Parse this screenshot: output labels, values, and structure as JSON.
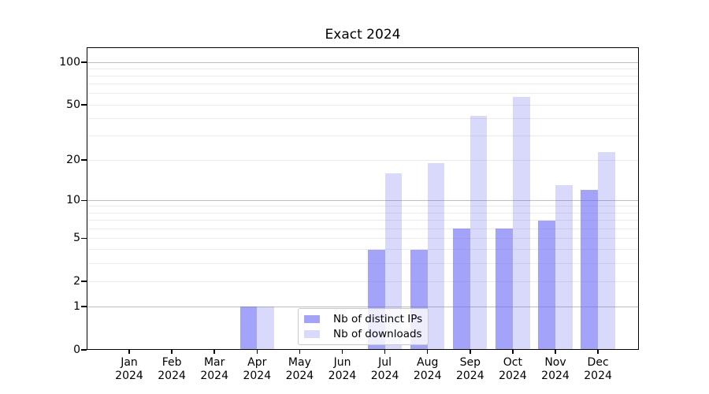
{
  "chart_data": {
    "type": "bar",
    "title": "Exact 2024",
    "categories": [
      "Jan",
      "Feb",
      "Mar",
      "Apr",
      "May",
      "Jun",
      "Jul",
      "Aug",
      "Sep",
      "Oct",
      "Nov",
      "Dec"
    ],
    "year_label": "2024",
    "series": [
      {
        "name": "Nb of distinct IPs",
        "color": "rgba(102,102,245,0.6)",
        "values": [
          0,
          0,
          0,
          1,
          0,
          0,
          4,
          4,
          6,
          6,
          7,
          12
        ]
      },
      {
        "name": "Nb of downloads",
        "color": "rgba(102,102,245,0.25)",
        "values": [
          0,
          0,
          0,
          1,
          0,
          0,
          16,
          19,
          42,
          57,
          13,
          23
        ]
      }
    ],
    "y_axis": {
      "scale": "log10(1+v)",
      "tick_labels": [
        0,
        1,
        2,
        5,
        10,
        20,
        50,
        100
      ],
      "major_gridlines": [
        1,
        10,
        100
      ],
      "minor_gridlines": [
        2,
        3,
        4,
        5,
        6,
        7,
        8,
        9,
        20,
        30,
        40,
        50,
        60,
        70,
        80,
        90
      ],
      "ylim": [
        0,
        127
      ]
    },
    "legend_position": "lower center",
    "grid": true,
    "colors": {
      "grid_major": "#bdbdbd",
      "grid_minor": "#ebebeb",
      "axis": "#000000",
      "background": "#ffffff"
    }
  }
}
